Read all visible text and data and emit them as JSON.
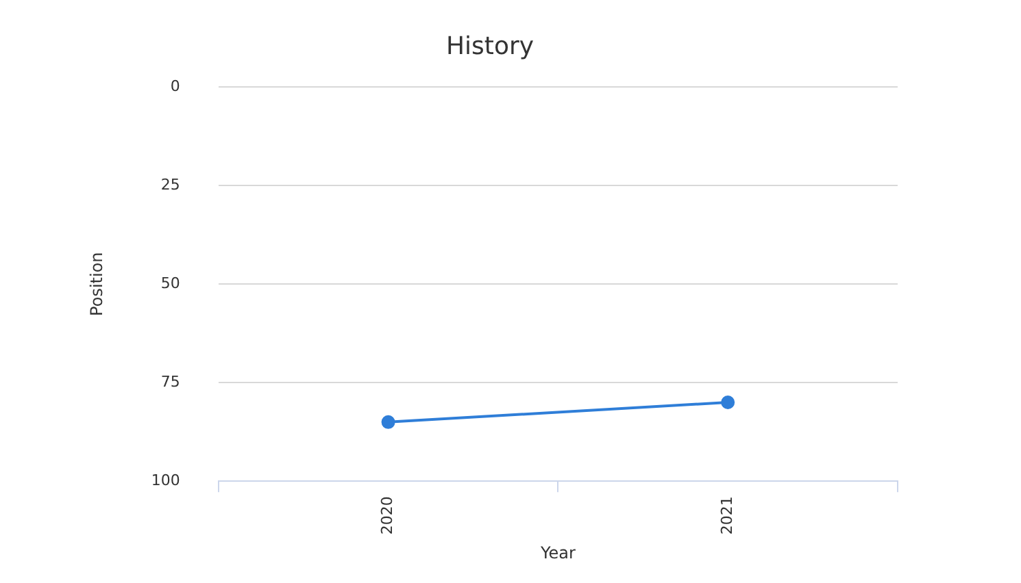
{
  "chart_data": {
    "type": "line",
    "title": "History",
    "xlabel": "Year",
    "ylabel": "Position",
    "categories": [
      "2020",
      "2021"
    ],
    "series": [
      {
        "color": "#2f7ed8",
        "values": [
          85,
          80
        ]
      }
    ],
    "ylim": [
      100,
      0
    ],
    "yticks": [
      0,
      25,
      50,
      75,
      100
    ],
    "grid": "y",
    "legend": false,
    "marker": "circle",
    "line_style": "solid"
  }
}
